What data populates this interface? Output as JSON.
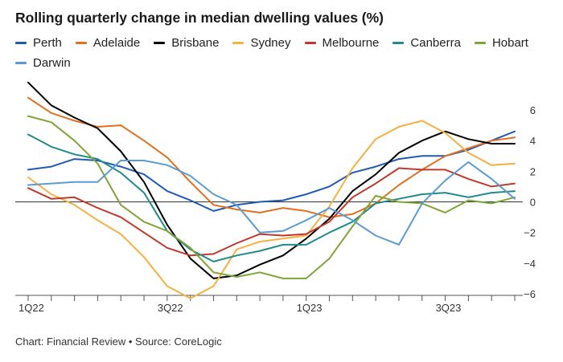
{
  "chart_data": {
    "type": "line",
    "title": "Rolling quarterly change in median dwelling values (%)",
    "source": "Chart: Financial Review • Source: CoreLogic",
    "ylim": [
      -6,
      7
    ],
    "yticks": [
      6,
      4,
      2,
      0,
      -2,
      -4,
      -6
    ],
    "x_tick_labels": [
      {
        "index": 0,
        "label": "1Q22"
      },
      {
        "index": 6,
        "label": "3Q22"
      },
      {
        "index": 12,
        "label": "1Q23"
      },
      {
        "index": 18,
        "label": "3Q23"
      }
    ],
    "n_points": 22,
    "grid": false,
    "legend_position": "top",
    "series": [
      {
        "name": "Perth",
        "color": "#1f5bb5",
        "values": [
          2.1,
          2.3,
          2.8,
          2.7,
          2.3,
          1.8,
          0.7,
          0.1,
          -0.6,
          -0.2,
          0.0,
          0.1,
          0.5,
          1.0,
          1.9,
          2.3,
          2.8,
          3.0,
          3.0,
          3.4,
          4.0,
          4.6
        ]
      },
      {
        "name": "Adelaide",
        "color": "#e0701f",
        "values": [
          6.8,
          5.8,
          5.3,
          4.9,
          5.0,
          4.0,
          2.9,
          1.3,
          -0.2,
          -0.5,
          -0.7,
          -0.4,
          -0.6,
          -1.0,
          -0.8,
          -0.1,
          1.1,
          2.1,
          3.0,
          3.5,
          4.0,
          4.2
        ]
      },
      {
        "name": "Brisbane",
        "color": "#000000",
        "values": [
          7.8,
          6.3,
          5.5,
          4.8,
          3.3,
          1.3,
          -1.5,
          -3.7,
          -5.0,
          -4.8,
          -4.1,
          -3.5,
          -2.4,
          -1.1,
          0.7,
          1.8,
          3.2,
          4.0,
          4.6,
          4.1,
          3.8,
          3.8
        ]
      },
      {
        "name": "Sydney",
        "color": "#f5b041",
        "values": [
          1.6,
          0.5,
          -0.2,
          -1.2,
          -2.1,
          -3.6,
          -5.5,
          -6.3,
          -5.5,
          -3.1,
          -2.6,
          -2.4,
          -2.2,
          -0.3,
          2.2,
          4.1,
          4.9,
          5.3,
          4.5,
          3.2,
          2.4,
          2.5
        ]
      },
      {
        "name": "Melbourne",
        "color": "#c0392b",
        "values": [
          0.9,
          0.2,
          0.3,
          -0.4,
          -1.0,
          -2.0,
          -3.0,
          -3.5,
          -3.4,
          -2.7,
          -2.1,
          -2.2,
          -2.1,
          -1.3,
          0.3,
          1.2,
          2.2,
          2.1,
          2.1,
          1.5,
          1.0,
          1.2
        ]
      },
      {
        "name": "Canberra",
        "color": "#218a8a",
        "values": [
          4.4,
          3.6,
          3.1,
          2.8,
          1.9,
          0.6,
          -1.9,
          -3.1,
          -3.9,
          -3.5,
          -3.2,
          -2.8,
          -2.8,
          -2.0,
          -1.3,
          -0.1,
          0.2,
          0.5,
          0.6,
          0.3,
          0.6,
          0.7
        ]
      },
      {
        "name": "Hobart",
        "color": "#7fa538",
        "values": [
          5.6,
          5.2,
          4.0,
          2.5,
          -0.2,
          -1.3,
          -1.9,
          -3.0,
          -4.6,
          -4.9,
          -4.6,
          -5.0,
          -5.0,
          -3.7,
          -1.6,
          0.4,
          0.0,
          -0.1,
          -0.7,
          0.1,
          -0.1,
          0.3
        ]
      },
      {
        "name": "Darwin",
        "color": "#5b9bd5",
        "values": [
          1.1,
          1.2,
          1.3,
          1.3,
          2.7,
          2.7,
          2.4,
          1.7,
          0.5,
          -0.2,
          -2.0,
          -1.9,
          -1.2,
          -0.4,
          -1.2,
          -2.2,
          -2.8,
          -0.1,
          1.4,
          2.6,
          1.5,
          0.2
        ]
      }
    ]
  }
}
